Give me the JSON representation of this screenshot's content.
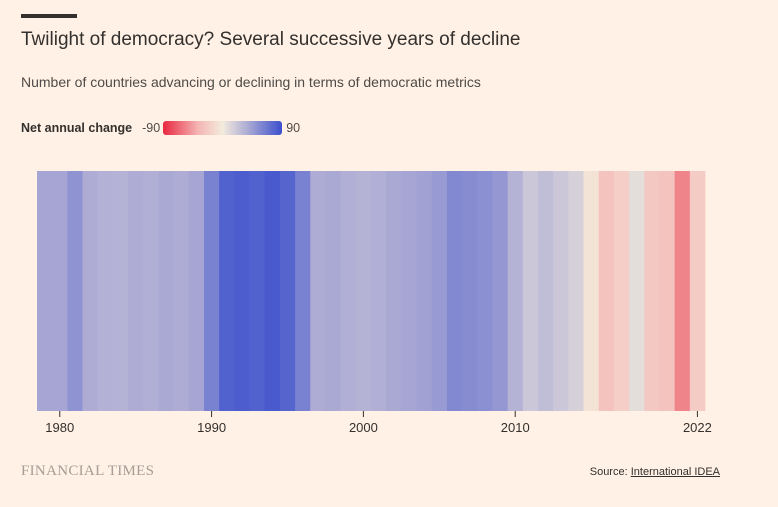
{
  "header": {
    "title": "Twilight of democracy? Several successive years of decline",
    "subtitle": "Number of countries advancing or declining in terms of democratic metrics"
  },
  "legend": {
    "label": "Net annual change",
    "min_label": "-90",
    "max_label": "90"
  },
  "colors": {
    "background": "#fff1e5",
    "strong_positive": "#3b4fcc",
    "neutral": "#f3ebdd",
    "strong_negative": "#e8273f"
  },
  "chart_data": {
    "type": "heatmap",
    "title": "Twilight of democracy? Several successive years of decline",
    "subtitle": "Number of countries advancing or declining in terms of democratic metrics",
    "color_range": [
      -90,
      90
    ],
    "x": [
      1979,
      1980,
      1981,
      1982,
      1983,
      1984,
      1985,
      1986,
      1987,
      1988,
      1989,
      1990,
      1991,
      1992,
      1993,
      1994,
      1995,
      1996,
      1997,
      1998,
      1999,
      2000,
      2001,
      2002,
      2003,
      2004,
      2005,
      2006,
      2007,
      2008,
      2009,
      2010,
      2011,
      2012,
      2013,
      2014,
      2015,
      2016,
      2017,
      2018,
      2019,
      2020,
      2021,
      2022
    ],
    "values": [
      42,
      42,
      52,
      38,
      35,
      34,
      38,
      36,
      40,
      38,
      42,
      62,
      80,
      82,
      80,
      84,
      78,
      62,
      38,
      40,
      36,
      34,
      36,
      40,
      42,
      44,
      48,
      58,
      56,
      54,
      50,
      34,
      22,
      28,
      22,
      16,
      -6,
      -28,
      -20,
      8,
      -24,
      -28,
      -55,
      -22
    ],
    "xticks": [
      "1980",
      "1990",
      "2000",
      "2010",
      "2022"
    ],
    "xlim": [
      1979,
      2022
    ],
    "source_label": "Source:",
    "source_link": "International IDEA"
  },
  "footer": {
    "brand": "FINANCIAL TIMES",
    "source_label": "Source:",
    "source_link": "International IDEA"
  }
}
